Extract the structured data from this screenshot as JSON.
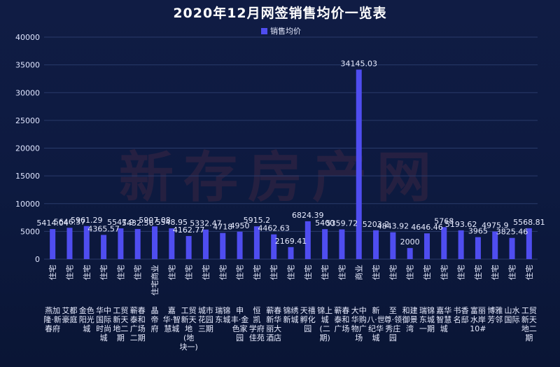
{
  "chart_data": {
    "type": "bar",
    "title": "2020年12月网签销售均价一览表",
    "legend": {
      "label": "销售均价",
      "placement": "top-center"
    },
    "watermark": "新存房产网",
    "bar_color": "#4f4df0",
    "ylim": [
      0,
      40000
    ],
    "yticks": [
      0,
      5000,
      10000,
      15000,
      20000,
      25000,
      30000,
      35000,
      40000
    ],
    "grid": true,
    "categories": [
      {
        "type": "住宅",
        "name": [
          "燕加",
          "隆·新",
          "春府"
        ]
      },
      {
        "type": "住宅",
        "name": [
          "艾都",
          "豪庭"
        ]
      },
      {
        "type": "住宅",
        "name": [
          "金色",
          "阳光",
          "城"
        ]
      },
      {
        "type": "住宅",
        "name": [
          "华中",
          "国际",
          "时尚",
          "城"
        ]
      },
      {
        "type": "住宅",
        "name": [
          "工贸",
          "新天",
          "地二",
          "期"
        ]
      },
      {
        "type": "住宅",
        "name": [
          "蕲春",
          "泰和",
          "广场",
          "二期"
        ]
      },
      {
        "type": "住宅商业",
        "name": [
          "晶",
          "帝",
          "府"
        ]
      },
      {
        "type": "住宅",
        "name": [
          "嘉",
          "华·智",
          "慧城"
        ]
      },
      {
        "type": "住宅",
        "name": [
          "工贸",
          "新天",
          "地",
          "(地",
          "块一)"
        ]
      },
      {
        "type": "住宅",
        "name": [
          "城市",
          "花园",
          "三期"
        ]
      },
      {
        "type": "住宅",
        "name": [
          "瑞锦",
          "东城"
        ]
      },
      {
        "type": "住宅",
        "name": [
          "申",
          "丰·金",
          "色家",
          "园"
        ]
      },
      {
        "type": "住宅",
        "name": [
          "恒",
          "凯",
          "学府",
          "佳苑"
        ]
      },
      {
        "type": "住宅",
        "name": [
          "蕲春",
          "新华",
          "丽大",
          "酒店"
        ]
      },
      {
        "type": "住宅",
        "name": [
          "锦绣",
          "新城"
        ]
      },
      {
        "type": "住宅",
        "name": [
          "天禧",
          "孵化",
          "园"
        ]
      },
      {
        "type": "住宅",
        "name": [
          "锦上",
          "城",
          "(二",
          "期)"
        ]
      },
      {
        "type": "住宅",
        "name": [
          "蕲春",
          "泰和",
          "广场"
        ]
      },
      {
        "type": "商业",
        "name": [
          "大中",
          "华购",
          "物广",
          "场"
        ]
      },
      {
        "type": "住宅",
        "name": [
          "新",
          "八·世",
          "纪华",
          "城"
        ]
      },
      {
        "type": "住宅",
        "name": [
          "至",
          "尊·领",
          "秀庄",
          "园"
        ]
      },
      {
        "type": "住宅",
        "name": [
          "和建",
          "御景",
          "湾"
        ]
      },
      {
        "type": "住宅",
        "name": [
          "瑞锦",
          "东城",
          "一期"
        ]
      },
      {
        "type": "住宅",
        "name": [
          "嘉华",
          "智慧",
          "城"
        ]
      },
      {
        "type": "住宅",
        "name": [
          "书香",
          "名邸"
        ]
      },
      {
        "type": "住宅",
        "name": [
          "富丽",
          "水岸",
          "10#"
        ]
      },
      {
        "type": "住宅",
        "name": [
          "博雅",
          "芳邻"
        ]
      },
      {
        "type": "住宅",
        "name": [
          "山水",
          "国际"
        ]
      },
      {
        "type": "住宅",
        "name": [
          "工贸",
          "新天",
          "地二",
          "期"
        ]
      }
    ],
    "series": [
      {
        "name": "销售均价",
        "values": [
          5414.04,
          5646.37,
          5961.29,
          4365.57,
          5547.9,
          5432.56,
          5907.08,
          5548.95,
          4162.77,
          5332.47,
          4718,
          4950,
          5915.2,
          4462.63,
          2169.41,
          6824.39,
          5400,
          5359.72,
          34145.03,
          5203.2,
          4843.92,
          2000,
          4646.46,
          5768,
          5193.62,
          3965,
          4975.9,
          3825.46,
          5568.81
        ]
      }
    ]
  }
}
